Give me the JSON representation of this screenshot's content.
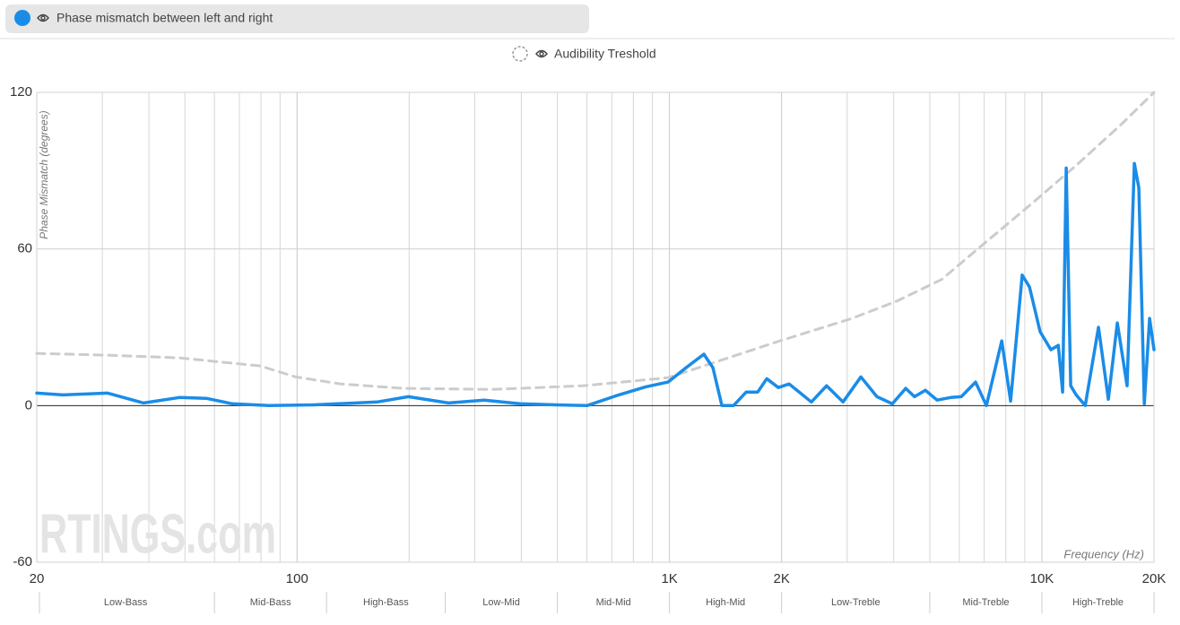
{
  "chart_data": {
    "type": "line",
    "legend": [
      "Phase mismatch between left and right",
      "Audibility Treshold"
    ],
    "ylabel": "Phase Mismatch (degrees)",
    "xlabel": "Frequency (Hz)",
    "watermark": "RTINGS.com",
    "xscale": "log",
    "xlim": [
      20,
      20000
    ],
    "ylim": [
      -60,
      120
    ],
    "yticks": [
      -60,
      0,
      60,
      120
    ],
    "xticks": [
      20,
      100,
      {
        "value": 1000,
        "label": "1K"
      },
      {
        "value": 2000,
        "label": "2K"
      },
      {
        "value": 10000,
        "label": "10K"
      },
      {
        "value": 20000,
        "label": "20K"
      }
    ],
    "xminor": [
      30,
      40,
      50,
      60,
      70,
      80,
      90,
      200,
      300,
      400,
      500,
      600,
      700,
      800,
      900,
      3000,
      4000,
      5000,
      6000,
      7000,
      8000,
      9000
    ],
    "grid": true,
    "bands": [
      {
        "name": "Low-Bass",
        "from": 20,
        "to": 60
      },
      {
        "name": "Mid-Bass",
        "from": 60,
        "to": 120
      },
      {
        "name": "High-Bass",
        "from": 120,
        "to": 250
      },
      {
        "name": "Low-Mid",
        "from": 250,
        "to": 500
      },
      {
        "name": "Mid-Mid",
        "from": 500,
        "to": 1000
      },
      {
        "name": "High-Mid",
        "from": 1000,
        "to": 2000
      },
      {
        "name": "Low-Treble",
        "from": 2000,
        "to": 5000
      },
      {
        "name": "Mid-Treble",
        "from": 5000,
        "to": 10000
      },
      {
        "name": "High-Treble",
        "from": 10000,
        "to": 20000
      }
    ],
    "series": [
      {
        "name": "Phase mismatch between left and right",
        "color": "#1a8ce8",
        "dash": false,
        "x": [
          20,
          23.5,
          31,
          38.7,
          48.3,
          57,
          67,
          84,
          111,
          164,
          199,
          255,
          318,
          397,
          496,
          601,
          731,
          863,
          991,
          1107,
          1237,
          1308,
          1383,
          1486,
          1607,
          1726,
          1824,
          1960,
          2096,
          2405,
          2643,
          2925,
          3266,
          3606,
          3966,
          4308,
          4550,
          4866,
          5231,
          5686,
          6076,
          6637,
          7096,
          7800,
          8242,
          8852,
          9261,
          9890,
          10570,
          11070,
          11370,
          11620,
          11950,
          12360,
          13070,
          14190,
          15080,
          15940,
          16940,
          17710,
          18210,
          18840,
          19460,
          20000
        ],
        "values": [
          4.8,
          4.1,
          4.8,
          1.0,
          3.1,
          2.8,
          0.7,
          0,
          0.3,
          1.4,
          3.4,
          1.0,
          2.1,
          0.7,
          0.3,
          0,
          4.1,
          7.2,
          9.0,
          14.5,
          19.7,
          14.5,
          0,
          0,
          5.2,
          5.2,
          10.3,
          6.9,
          8.3,
          1.4,
          7.6,
          1.4,
          11,
          3.4,
          0.7,
          6.6,
          3.4,
          5.9,
          2.1,
          3.1,
          3.4,
          9,
          0,
          24.8,
          1.7,
          50,
          45.5,
          28.3,
          21.4,
          23.1,
          5.2,
          91,
          7.6,
          4.1,
          0,
          30,
          2.4,
          31.7,
          7.6,
          92.8,
          83.4,
          0.7,
          33.4,
          21.4
        ]
      },
      {
        "name": "Audibility Treshold",
        "color": "#cccccc",
        "dash": true,
        "x": [
          20,
          31,
          48.3,
          60.3,
          79.6,
          99,
          131,
          193,
          336,
          585,
          991,
          1344,
          1982,
          3090,
          4074,
          5378,
          7096,
          9360,
          12360,
          16300,
          20000
        ],
        "values": [
          20,
          19.3,
          18.3,
          16.9,
          15.2,
          11,
          8.3,
          6.6,
          6.2,
          7.6,
          10.7,
          16.9,
          24.8,
          33.4,
          40,
          48.3,
          62.8,
          77.2,
          92,
          107.6,
          120
        ]
      }
    ]
  }
}
